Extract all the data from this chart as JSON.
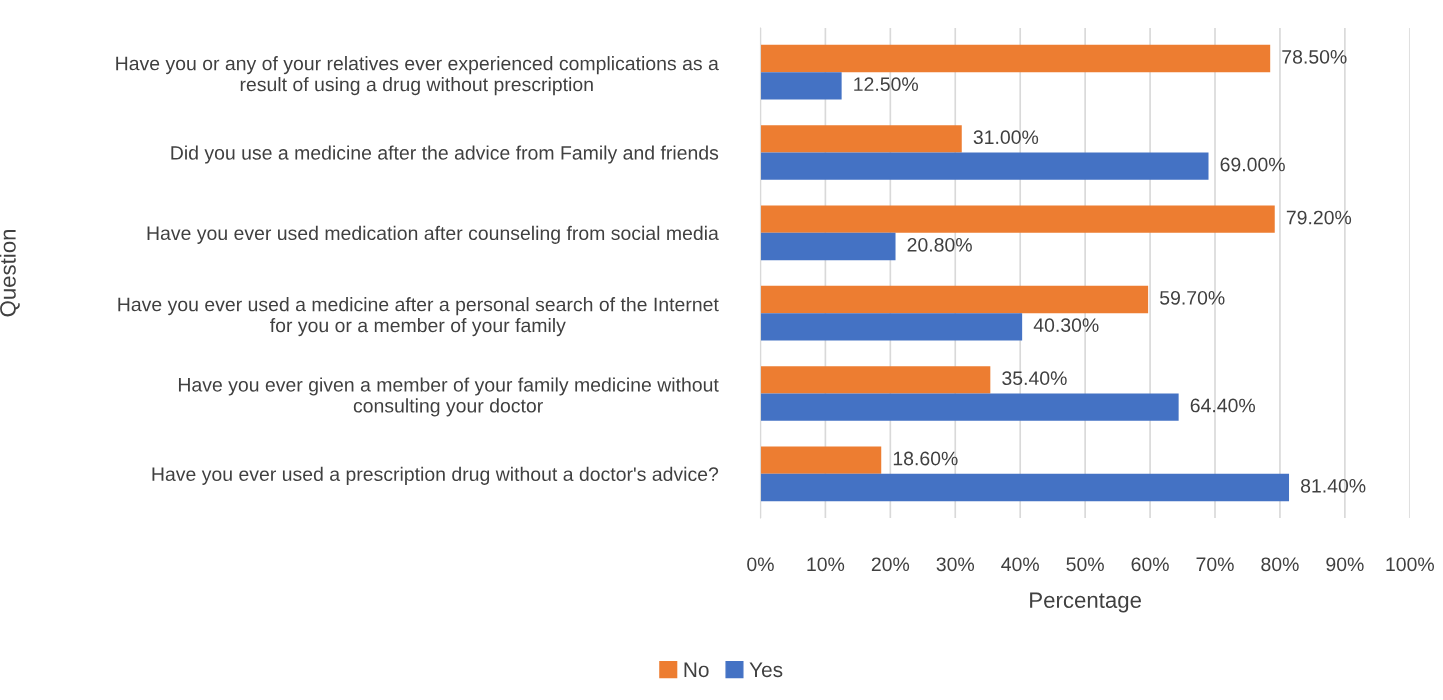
{
  "chart_data": {
    "type": "bar",
    "orientation": "horizontal",
    "xlabel": "Percentage",
    "ylabel": "Question",
    "categories": [
      "Have you or any of your relatives ever experienced complications as a\nresult of using a drug without prescription",
      "Did you use a medicine after the advice from Family and friends",
      "Have you ever used medication after counseling from social media",
      "Have you ever used a medicine after a personal search of the Internet\nfor you or a member of your family",
      "Have you ever given a member of your family medicine without\nconsulting your doctor",
      "Have you ever used a prescription drug without a doctor's advice?"
    ],
    "series": [
      {
        "name": "No",
        "color": "#ed7d31",
        "values": [
          78.5,
          31.0,
          79.2,
          59.7,
          35.4,
          18.6
        ],
        "value_labels": [
          "78.50%",
          "31.00%",
          "79.20%",
          "59.70%",
          "35.40%",
          "18.60%"
        ]
      },
      {
        "name": "Yes",
        "color": "#4472c4",
        "values": [
          12.5,
          69.0,
          20.8,
          40.3,
          64.4,
          81.4
        ],
        "value_labels": [
          "12.50%",
          "69.00%",
          "20.80%",
          "40.30%",
          "64.40%",
          "81.40%"
        ]
      }
    ],
    "xlim": [
      0,
      100
    ],
    "xticks": [
      {
        "value": 0,
        "label": "0%"
      },
      {
        "value": 10,
        "label": "10%"
      },
      {
        "value": 20,
        "label": "20%"
      },
      {
        "value": 30,
        "label": "30%"
      },
      {
        "value": 40,
        "label": "40%"
      },
      {
        "value": 50,
        "label": "50%"
      },
      {
        "value": 60,
        "label": "60%"
      },
      {
        "value": 70,
        "label": "70%"
      },
      {
        "value": 80,
        "label": "80%"
      },
      {
        "value": 90,
        "label": "90%"
      },
      {
        "value": 100,
        "label": "100%"
      }
    ],
    "grid": "x",
    "legend": "bottom"
  }
}
